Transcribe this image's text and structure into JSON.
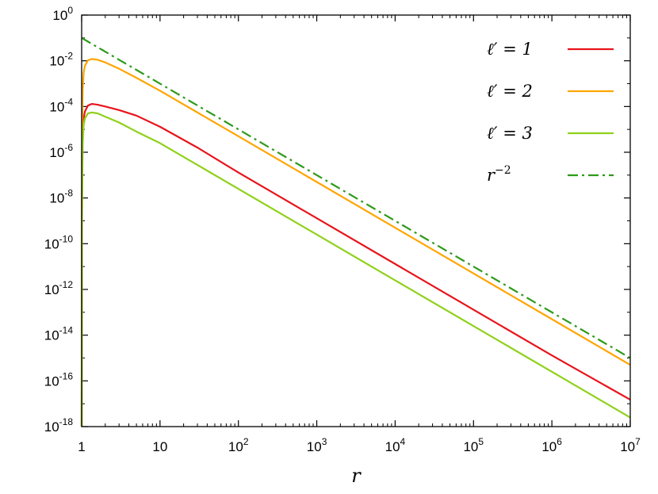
{
  "chart_data": {
    "type": "line",
    "title": "",
    "xlabel": "r",
    "ylabel": "",
    "x_scale": "log",
    "y_scale": "log",
    "xlim": [
      1,
      10000000
    ],
    "ylim": [
      1e-18,
      1
    ],
    "grid": false,
    "legend_placement": "top-right",
    "x_ticks": [
      {
        "value": 1,
        "base": "1",
        "exp": ""
      },
      {
        "value": 10,
        "base": "10",
        "exp": ""
      },
      {
        "value": 100,
        "base": "10",
        "exp": "2"
      },
      {
        "value": 1000,
        "base": "10",
        "exp": "3"
      },
      {
        "value": 10000,
        "base": "10",
        "exp": "4"
      },
      {
        "value": 100000,
        "base": "10",
        "exp": "5"
      },
      {
        "value": 1000000,
        "base": "10",
        "exp": "6"
      },
      {
        "value": 10000000,
        "base": "10",
        "exp": "7"
      }
    ],
    "y_ticks": [
      {
        "value": 1,
        "base": "10",
        "exp": "0"
      },
      {
        "value": 0.01,
        "base": "10",
        "exp": "-2"
      },
      {
        "value": 0.0001,
        "base": "10",
        "exp": "-4"
      },
      {
        "value": 1e-06,
        "base": "10",
        "exp": "-6"
      },
      {
        "value": 1e-08,
        "base": "10",
        "exp": "-8"
      },
      {
        "value": 1e-10,
        "base": "10",
        "exp": "-10"
      },
      {
        "value": 1e-12,
        "base": "10",
        "exp": "-12"
      },
      {
        "value": 1e-14,
        "base": "10",
        "exp": "-14"
      },
      {
        "value": 1e-16,
        "base": "10",
        "exp": "-16"
      },
      {
        "value": 1e-18,
        "base": "10",
        "exp": "-18"
      }
    ],
    "series": [
      {
        "name": "ℓ′ = 1",
        "legend_main": "ℓ′ = 1",
        "legend_sup": "",
        "color": "#e8141c",
        "dash": "solid",
        "x": [
          1.0,
          1.01,
          1.03,
          1.06,
          1.1,
          1.2,
          1.35,
          1.6,
          2.0,
          3.0,
          5.0,
          10,
          30,
          100,
          1000,
          10000,
          100000,
          1000000,
          10000000
        ],
        "y": [
          1e-18,
          1e-08,
          5e-06,
          3e-05,
          6e-05,
          0.00011,
          0.00013,
          0.00012,
          0.0001,
          7e-05,
          4e-05,
          1.3e-05,
          1.6e-06,
          1.3e-07,
          1.3e-09,
          1.3e-11,
          1.3e-13,
          1.3e-15,
          1.5e-17
        ]
      },
      {
        "name": "ℓ′ = 2",
        "legend_main": "ℓ′ = 2",
        "legend_sup": "",
        "color": "#ffa500",
        "dash": "solid",
        "x": [
          1.0,
          1.01,
          1.03,
          1.06,
          1.1,
          1.2,
          1.35,
          1.6,
          2.0,
          3.0,
          5.0,
          10,
          100,
          1000,
          10000,
          100000,
          1000000,
          10000000
        ],
        "y": [
          1e-18,
          1e-06,
          0.0005,
          0.003,
          0.006,
          0.0105,
          0.012,
          0.011,
          0.0085,
          0.0045,
          0.0018,
          0.00049,
          5e-06,
          5e-08,
          5e-10,
          5e-12,
          5e-14,
          5e-16
        ]
      },
      {
        "name": "ℓ′ = 3",
        "legend_main": "ℓ′ = 3",
        "legend_sup": "",
        "color": "#8fd11a",
        "dash": "solid",
        "x": [
          1.0,
          1.01,
          1.03,
          1.06,
          1.1,
          1.2,
          1.35,
          1.6,
          2.0,
          3.0,
          5.0,
          10,
          100,
          1000,
          10000,
          100000,
          1000000,
          10000000
        ],
        "y": [
          1e-18,
          1e-09,
          2e-06,
          1.5e-05,
          3e-05,
          5e-05,
          5.5e-05,
          5e-05,
          3.6e-05,
          2e-05,
          8e-06,
          2.5e-06,
          2.5e-08,
          2.5e-10,
          2.5e-12,
          2.5e-14,
          2.5e-16,
          2.5e-18
        ]
      },
      {
        "name": "r−2",
        "legend_main": "r",
        "legend_sup": "−2",
        "color": "#2e9a1a",
        "dash": "dashdot",
        "x": [
          1,
          10000000
        ],
        "y": [
          0.1,
          1e-15
        ]
      }
    ]
  }
}
